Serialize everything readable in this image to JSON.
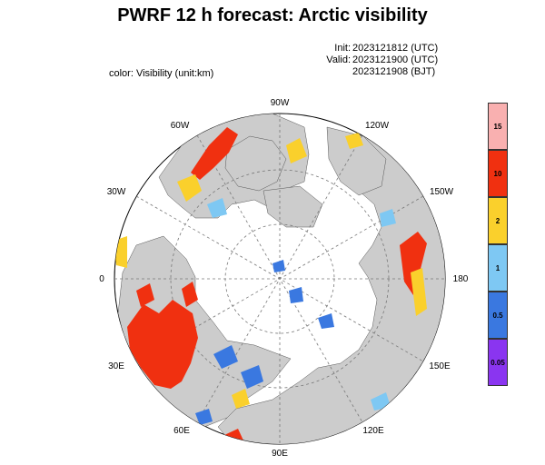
{
  "title": "PWRF 12 h forecast: Arctic visibility",
  "meta": {
    "init_label": "Init:",
    "init_value": "2023121812 (UTC)",
    "valid_label": "Valid:",
    "valid_value": "2023121900 (UTC)",
    "bjt_value": "2023121908 (BJT)"
  },
  "color_label": "color: Visibility (unit:km)",
  "map": {
    "longitude_labels": [
      "90W",
      "120W",
      "150W",
      "180",
      "150E",
      "120E",
      "90E",
      "60E",
      "30E",
      "0",
      "30W",
      "60W"
    ],
    "colors": {
      "ocean": "#ffffff",
      "land": "#cccccc",
      "graticule": "#777777"
    }
  },
  "legend": {
    "items": [
      {
        "label": "15",
        "color": "#f9b0b0"
      },
      {
        "label": "10",
        "color": "#f03010"
      },
      {
        "label": "2",
        "color": "#fad02c"
      },
      {
        "label": "1",
        "color": "#7ec8f3"
      },
      {
        "label": "0.5",
        "color": "#3a78e0"
      },
      {
        "label": "0.05",
        "color": "#8a35f0"
      }
    ]
  }
}
